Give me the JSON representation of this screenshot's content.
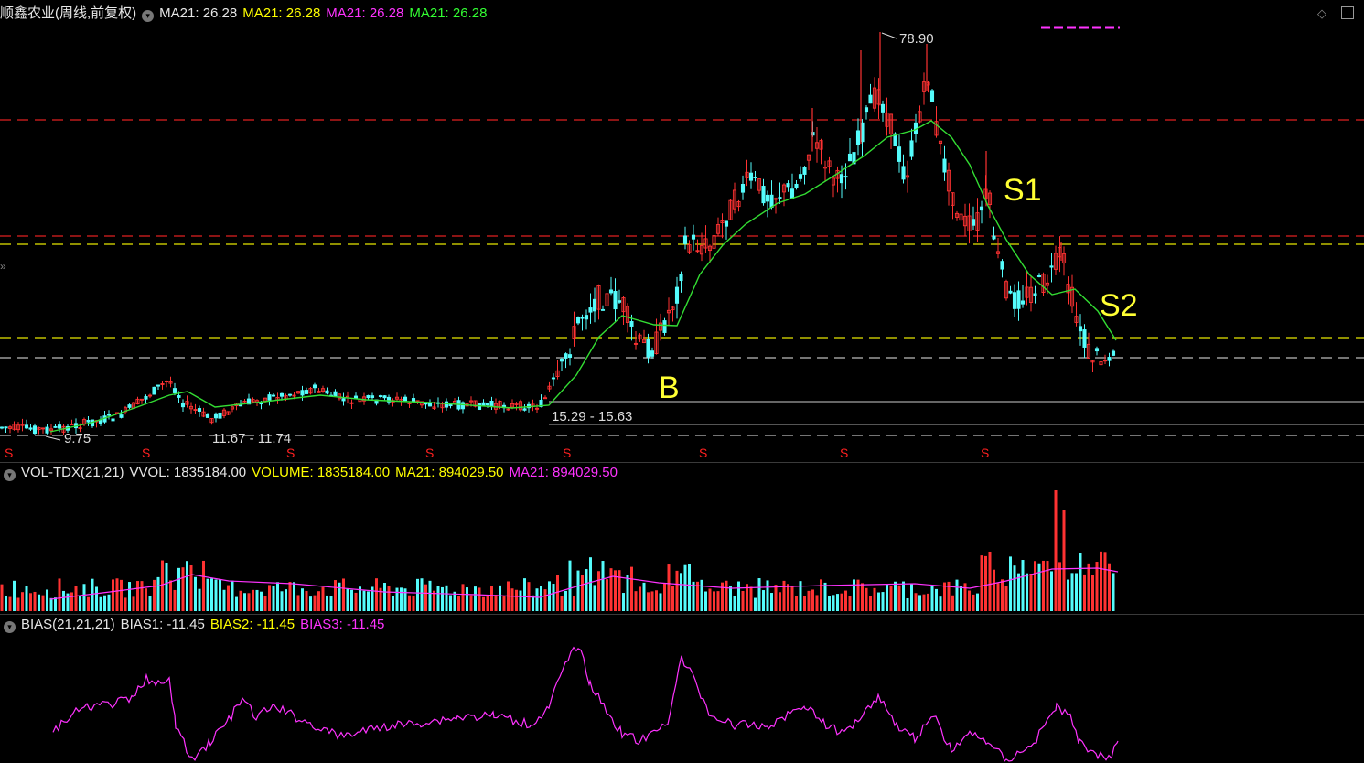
{
  "header": {
    "title": "顺鑫农业(周线,前复权)",
    "ma": [
      {
        "text": "MA21: 26.28",
        "color": "#e6e6e6"
      },
      {
        "text": "MA21: 26.28",
        "color": "#ffff00"
      },
      {
        "text": "MA21: 26.28",
        "color": "#ff33ff"
      },
      {
        "text": "MA21: 26.28",
        "color": "#33ff33"
      }
    ]
  },
  "price_panel": {
    "high_label": "78.90",
    "low_label": "9.75",
    "range_label_1": "11.67 - 11.74",
    "range_label_2": "15.29 - 15.63",
    "annotations": {
      "b": "B",
      "s1": "S1",
      "s2": "S2"
    },
    "signal_marker": "S"
  },
  "volume_panel": {
    "indicator": "VOL-TDX(21,21)",
    "vvol": "VVOL: 1835184.00",
    "volume": "VOLUME: 1835184.00",
    "ma1": "MA21: 894029.50",
    "ma2": "MA21: 894029.50"
  },
  "bias_panel": {
    "indicator": "BIAS(21,21,21)",
    "bias1": "BIAS1: -11.45",
    "bias2": "BIAS2: -11.45",
    "bias3": "BIAS3: -11.45"
  },
  "colors": {
    "up": "#ff3232",
    "down": "#54fcfc",
    "ma_line": "#33dd33",
    "vol_ma": "#ff33ff",
    "red_hline": "#e02020",
    "yellow_hline": "#e6e600",
    "gray_hline": "#bbbbbb"
  }
}
